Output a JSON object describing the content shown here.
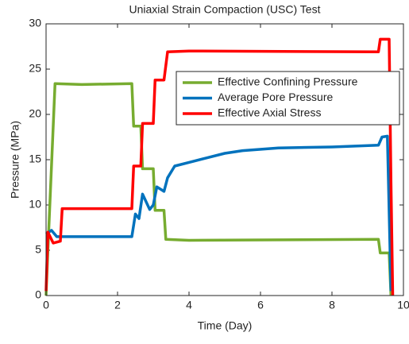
{
  "chart_data": {
    "type": "line",
    "title": "Uniaxial Strain Compaction (USC) Test",
    "xlabel": "Time (Day)",
    "ylabel": "Pressure (MPa)",
    "xlim": [
      0,
      10
    ],
    "xticks": [
      0,
      2,
      4,
      6,
      8,
      10
    ],
    "ylim": [
      0,
      30
    ],
    "yticks": [
      0,
      5,
      10,
      15,
      20,
      25,
      30
    ],
    "grid": false,
    "legend": "upper right",
    "series": [
      {
        "name": "Effective Confining Pressure",
        "color": "#77ac30",
        "x": [
          0,
          0.05,
          0.1,
          0.25,
          1.0,
          2.4,
          2.45,
          2.65,
          2.7,
          3.0,
          3.05,
          3.3,
          3.35,
          4.0,
          9.3,
          9.35,
          9.6,
          9.65
        ],
        "values": [
          0,
          5,
          9.5,
          23.4,
          23.3,
          23.4,
          18.7,
          18.7,
          14,
          14,
          9.4,
          9.4,
          6.2,
          6.1,
          6.2,
          4.7,
          4.7,
          0
        ]
      },
      {
        "name": "Average Pore Pressure",
        "color": "#0072bd",
        "x": [
          0,
          0.15,
          0.3,
          1.5,
          2.4,
          2.5,
          2.6,
          2.7,
          2.9,
          3.0,
          3.1,
          3.3,
          3.4,
          3.6,
          4.0,
          4.5,
          5.0,
          5.5,
          6.5,
          8.0,
          9.3,
          9.4,
          9.55,
          9.65
        ],
        "values": [
          6.8,
          7.2,
          6.5,
          6.5,
          6.5,
          9,
          8.5,
          11.2,
          9.5,
          10,
          12,
          11.5,
          13,
          14.3,
          14.7,
          15.2,
          15.7,
          16,
          16.3,
          16.4,
          16.6,
          17.5,
          17.6,
          0.5
        ]
      },
      {
        "name": "Effective Axial Stress",
        "color": "#ff0000",
        "x": [
          0,
          0.05,
          0.2,
          0.4,
          0.45,
          2.4,
          2.45,
          2.65,
          2.7,
          3.0,
          3.05,
          3.3,
          3.4,
          4.0,
          9.3,
          9.35,
          9.6,
          9.65,
          9.7
        ],
        "values": [
          0.5,
          7,
          5.8,
          6,
          9.6,
          9.6,
          14.3,
          14.3,
          19,
          19,
          23.8,
          23.8,
          26.9,
          27,
          26.9,
          28.3,
          28.3,
          12.5,
          0
        ]
      }
    ]
  }
}
